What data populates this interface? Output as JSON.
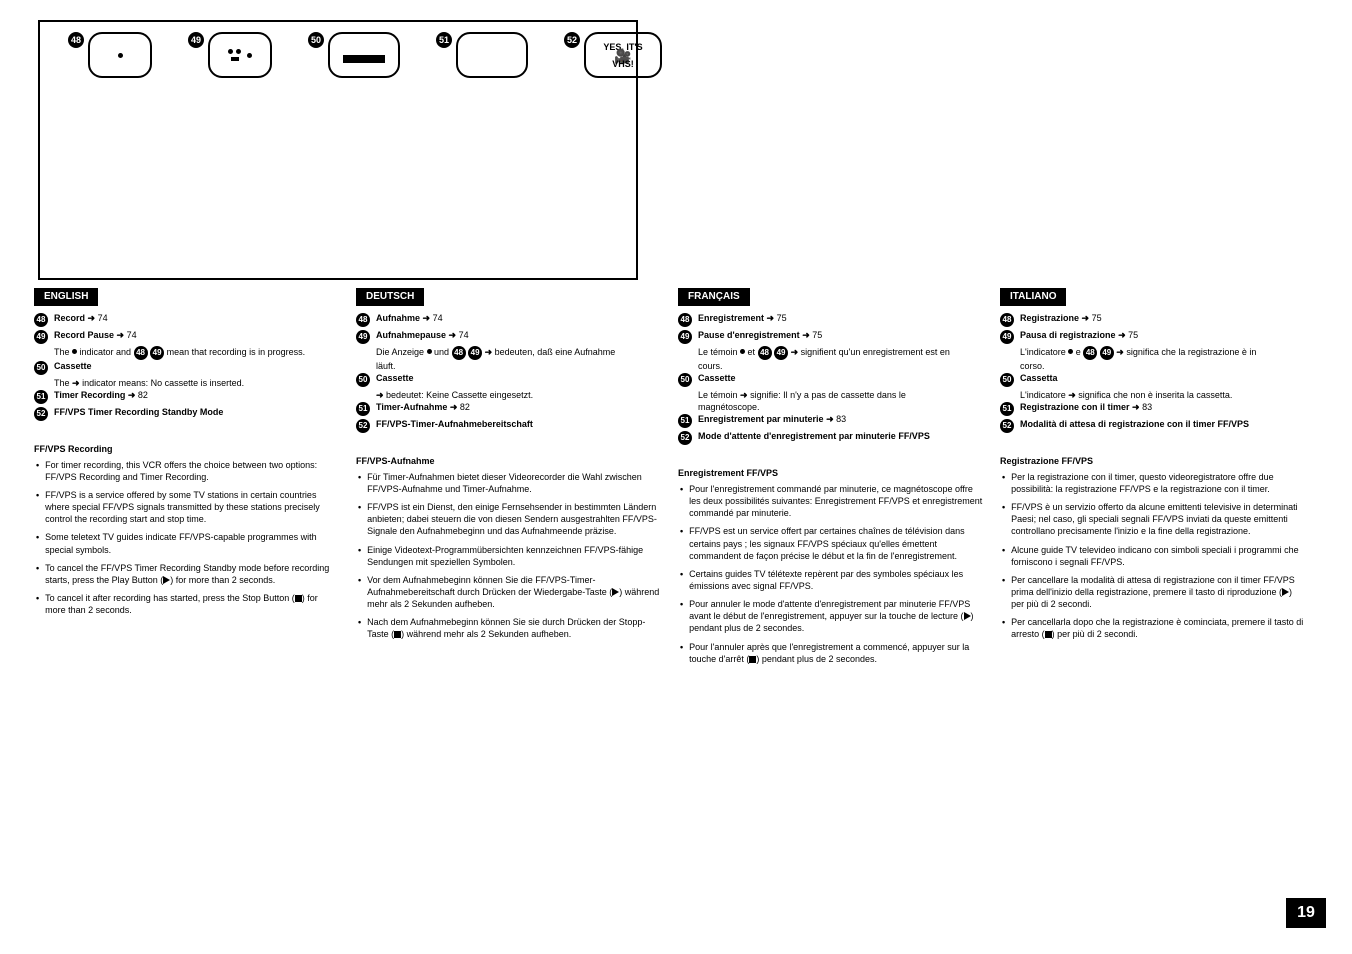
{
  "page_number": "19",
  "icon_labels": [
    "48",
    "49",
    "50",
    "51",
    "52"
  ],
  "vhs_line1": "YES, IT'S",
  "vhs_line2": "VHS!",
  "columns": [
    {
      "lang": "ENGLISH",
      "defs": [
        {
          "n": "48",
          "term": "Record",
          "ref": "74"
        },
        {
          "n": "49",
          "term": "Record Pause",
          "ref": "74",
          "note_prefix": "The",
          "note_dot": true,
          "note_mid": "indicator and",
          "note_balls": [
            "48",
            "49"
          ],
          "note_suffix": " mean that recording is in progress."
        },
        {
          "n": "50",
          "term": "Cassette",
          "note_line": "The ➜ indicator means: No cassette is inserted."
        },
        {
          "n": "51",
          "term": "Timer Recording",
          "ref": "82"
        },
        {
          "n": "52",
          "term": "FF/VPS Timer Recording Standby Mode"
        }
      ],
      "bul_title": "FF/VPS Recording",
      "bullets": [
        "For timer recording, this VCR offers the choice between two options: FF/VPS Recording and Timer Recording.",
        "FF/VPS is a service offered by some TV stations in certain countries where special FF/VPS signals transmitted by these stations precisely control the recording start and stop time.",
        "Some teletext TV guides indicate FF/VPS-capable programmes with special symbols.",
        "To cancel the FF/VPS Timer Recording Standby mode before recording starts, press the Play Button (▶) for more than 2 seconds.",
        "To cancel it after recording has started, press the Stop Button (■) for more than 2 seconds."
      ]
    },
    {
      "lang": "DEUTSCH",
      "defs": [
        {
          "n": "48",
          "term": "Aufnahme",
          "ref": "74"
        },
        {
          "n": "49",
          "term": "Aufnahmepause",
          "ref": "74",
          "note_prefix": "Die Anzeige",
          "note_dot": true,
          "note_mid": "und",
          "note_balls": [
            "48",
            "49"
          ],
          "note_suffix": " bedeuten, daß eine Aufnahme läuft.",
          "extra_arrow": true
        },
        {
          "n": "50",
          "term": "Cassette",
          "note_line": "➜ bedeutet: Keine Cassette eingesetzt."
        },
        {
          "n": "51",
          "term": "Timer-Aufnahme",
          "ref": "82"
        },
        {
          "n": "52",
          "term": "FF/VPS-Timer-Aufnahmebereitschaft"
        }
      ],
      "bul_title": "FF/VPS-Aufnahme",
      "bullets": [
        "Für Timer-Aufnahmen bietet dieser Videorecorder die Wahl zwischen FF/VPS-Aufnahme und Timer-Aufnahme.",
        "FF/VPS ist ein Dienst, den einige Fernsehsender in bestimmten Ländern anbieten; dabei steuern die von diesen Sendern ausgestrahlten FF/VPS-Signale den Aufnahmebeginn und das Aufnahmeende präzise.",
        "Einige Videotext-Programmübersichten kennzeichnen FF/VPS-fähige Sendungen mit speziellen Symbolen.",
        "Vor dem Aufnahmebeginn können Sie die FF/VPS-Timer-Aufnahmebereitschaft durch Drücken der Wiedergabe-Taste (▶) während mehr als 2 Sekunden aufheben.",
        "Nach dem Aufnahmebeginn können Sie sie durch Drücken der Stopp-Taste (■) während mehr als 2 Sekunden aufheben."
      ]
    },
    {
      "lang": "FRANÇAIS",
      "defs": [
        {
          "n": "48",
          "term": "Enregistrement",
          "ref": "75"
        },
        {
          "n": "49",
          "term": "Pause d'enregistrement",
          "ref": "75",
          "note_prefix": "Le témoin",
          "note_dot": true,
          "note_mid": "et",
          "note_balls": [
            "48",
            "49"
          ],
          "note_suffix": " signifient qu'un enregistrement est en cours.",
          "extra_arrow": true
        },
        {
          "n": "50",
          "term": "Cassette",
          "note_line": "Le témoin ➜ signifie: Il n'y a pas de cassette dans le magnétoscope."
        },
        {
          "n": "51",
          "term": "Enregistrement par minuterie",
          "ref": "83"
        },
        {
          "n": "52",
          "term": "Mode d'attente d'enregistrement par minuterie FF/VPS"
        }
      ],
      "bul_title": "Enregistrement FF/VPS",
      "bullets": [
        "Pour l'enregistrement commandé par minuterie, ce magnétoscope offre les deux possibilités suivantes: Enregistrement FF/VPS et enregistrement commandé par minuterie.",
        "FF/VPS est un service offert par certaines chaînes de télévision dans certains pays ; les signaux FF/VPS spéciaux qu'elles émettent commandent de façon précise le début et la fin de l'enregistrement.",
        "Certains guides TV télétexte repèrent par des symboles spéciaux les émissions avec signal FF/VPS.",
        "Pour annuler le mode d'attente d'enregistrement par minuterie FF/VPS avant le début de l'enregistrement, appuyer sur la touche de lecture (▶) pendant plus de 2 secondes.",
        "Pour l'annuler après que l'enregistrement a commencé, appuyer sur la touche d'arrêt (■) pendant plus de 2 secondes."
      ]
    },
    {
      "lang": "ITALIANO",
      "defs": [
        {
          "n": "48",
          "term": "Registrazione",
          "ref": "75"
        },
        {
          "n": "49",
          "term": "Pausa di registrazione",
          "ref": "75",
          "note_prefix": "L'indicatore",
          "note_dot": true,
          "note_mid": "e",
          "note_balls": [
            "48",
            "49"
          ],
          "note_suffix": " significa che la registrazione è in corso.",
          "extra_arrow": true
        },
        {
          "n": "50",
          "term": "Cassetta",
          "note_line": "L'indicatore ➜ significa che non è inserita la cassetta."
        },
        {
          "n": "51",
          "term": "Registrazione con il timer",
          "ref": "83"
        },
        {
          "n": "52",
          "term": "Modalità di attesa di registrazione con il timer FF/VPS"
        }
      ],
      "bul_title": "Registrazione FF/VPS",
      "bullets": [
        "Per la registrazione con il timer, questo videoregistratore offre due possibilità: la registrazione FF/VPS e la registrazione con il timer.",
        "FF/VPS è un servizio offerto da alcune emittenti televisive in determinati Paesi; nel caso, gli speciali segnali FF/VPS inviati da queste emittenti controllano precisamente l'inizio e la fine della registrazione.",
        "Alcune guide TV televideo indicano con simboli speciali i programmi che forniscono i segnali FF/VPS.",
        "Per cancellare la modalità di attesa di registrazione con il timer FF/VPS prima dell'inizio della registrazione, premere il tasto di riproduzione (▶) per più di 2 secondi.",
        "Per cancellarla dopo che la registrazione è cominciata, premere il tasto di arresto (■) per più di 2 secondi."
      ]
    }
  ]
}
